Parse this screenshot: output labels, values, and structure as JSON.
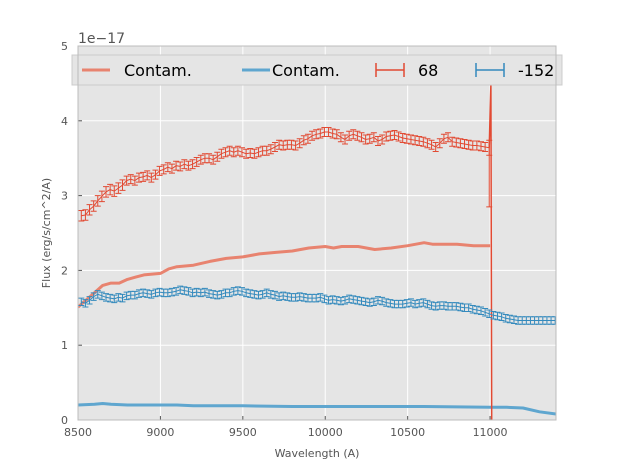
{
  "chart_data": {
    "type": "line",
    "title": "",
    "xlabel": "Wavelength (A)",
    "ylabel": "Flux (erg/s/cm^2/A)",
    "y_offset_label": "1e−17",
    "xlim": [
      8500,
      11400
    ],
    "ylim": [
      0,
      5
    ],
    "x_ticks": [
      8500,
      9000,
      9500,
      10000,
      10500,
      11000
    ],
    "x_tick_labels": [
      "8500",
      "9000",
      "9500",
      "10000",
      "10500",
      "11000"
    ],
    "y_ticks": [
      0,
      1,
      2,
      3,
      4,
      5
    ],
    "y_tick_labels": [
      "0",
      "1",
      "2",
      "3",
      "4",
      "5"
    ],
    "grid": true,
    "legend_position": "top",
    "series": [
      {
        "name": "Contam.",
        "kind": "line",
        "color": "#e8836f",
        "x": [
          8500,
          8600,
          8650,
          8700,
          8750,
          8800,
          8850,
          8900,
          8950,
          9000,
          9050,
          9100,
          9200,
          9300,
          9400,
          9500,
          9600,
          9700,
          9800,
          9900,
          10000,
          10050,
          10100,
          10200,
          10300,
          10400,
          10500,
          10600,
          10650,
          10700,
          10800,
          10900,
          11000
        ],
        "values": [
          1.51,
          1.7,
          1.8,
          1.83,
          1.83,
          1.88,
          1.91,
          1.94,
          1.95,
          1.96,
          2.02,
          2.05,
          2.07,
          2.12,
          2.16,
          2.18,
          2.22,
          2.24,
          2.26,
          2.3,
          2.32,
          2.3,
          2.32,
          2.32,
          2.28,
          2.3,
          2.33,
          2.37,
          2.35,
          2.35,
          2.35,
          2.33,
          2.33
        ]
      },
      {
        "name": "Contam.",
        "kind": "line",
        "color": "#5fa6cf",
        "x": [
          8500,
          8600,
          8650,
          8700,
          8800,
          9000,
          9100,
          9200,
          9500,
          9800,
          10000,
          10500,
          10600,
          11000,
          11100,
          11200,
          11300,
          11400
        ],
        "values": [
          0.2,
          0.21,
          0.22,
          0.21,
          0.2,
          0.2,
          0.2,
          0.19,
          0.19,
          0.18,
          0.18,
          0.18,
          0.18,
          0.17,
          0.17,
          0.16,
          0.11,
          0.08
        ]
      },
      {
        "name": "68",
        "kind": "errorbar",
        "color": "#e24a33",
        "x": [
          8520,
          8545,
          8570,
          8595,
          8620,
          8645,
          8670,
          8695,
          8720,
          8745,
          8770,
          8795,
          8820,
          8845,
          8870,
          8895,
          8920,
          8945,
          8970,
          8995,
          9020,
          9045,
          9070,
          9095,
          9120,
          9145,
          9170,
          9195,
          9220,
          9245,
          9270,
          9295,
          9320,
          9345,
          9370,
          9395,
          9420,
          9445,
          9470,
          9495,
          9520,
          9545,
          9570,
          9595,
          9620,
          9645,
          9670,
          9695,
          9720,
          9745,
          9770,
          9795,
          9820,
          9845,
          9870,
          9895,
          9920,
          9945,
          9970,
          9995,
          10020,
          10045,
          10070,
          10095,
          10120,
          10145,
          10170,
          10195,
          10220,
          10245,
          10270,
          10295,
          10320,
          10345,
          10370,
          10395,
          10420,
          10445,
          10470,
          10495,
          10520,
          10545,
          10570,
          10595,
          10620,
          10645,
          10670,
          10695,
          10720,
          10745,
          10770,
          10795,
          10820,
          10845,
          10870,
          10895,
          10920,
          10945,
          10970,
          10995
        ],
        "values": [
          2.73,
          2.74,
          2.81,
          2.86,
          2.93,
          2.99,
          3.05,
          3.08,
          3.06,
          3.1,
          3.14,
          3.2,
          3.22,
          3.2,
          3.24,
          3.25,
          3.27,
          3.24,
          3.28,
          3.33,
          3.35,
          3.38,
          3.36,
          3.4,
          3.39,
          3.42,
          3.4,
          3.42,
          3.45,
          3.48,
          3.5,
          3.5,
          3.48,
          3.52,
          3.56,
          3.58,
          3.6,
          3.58,
          3.6,
          3.58,
          3.56,
          3.57,
          3.56,
          3.58,
          3.6,
          3.6,
          3.62,
          3.65,
          3.68,
          3.67,
          3.68,
          3.68,
          3.67,
          3.7,
          3.74,
          3.76,
          3.8,
          3.82,
          3.83,
          3.85,
          3.85,
          3.83,
          3.82,
          3.78,
          3.75,
          3.8,
          3.82,
          3.8,
          3.78,
          3.75,
          3.76,
          3.78,
          3.73,
          3.75,
          3.79,
          3.8,
          3.81,
          3.79,
          3.77,
          3.76,
          3.75,
          3.74,
          3.73,
          3.72,
          3.7,
          3.68,
          3.65,
          3.7,
          3.76,
          3.78,
          3.72,
          3.71,
          3.7,
          3.69,
          3.68,
          3.67,
          3.67,
          3.66,
          3.65,
          3.64
        ],
        "errors": [
          0.07,
          0.07,
          0.07,
          0.07,
          0.07,
          0.07,
          0.07,
          0.07,
          0.07,
          0.07,
          0.07,
          0.06,
          0.06,
          0.06,
          0.06,
          0.06,
          0.06,
          0.06,
          0.06,
          0.06,
          0.06,
          0.06,
          0.06,
          0.06,
          0.06,
          0.06,
          0.06,
          0.06,
          0.06,
          0.06,
          0.06,
          0.06,
          0.06,
          0.06,
          0.06,
          0.06,
          0.06,
          0.06,
          0.06,
          0.06,
          0.06,
          0.06,
          0.06,
          0.06,
          0.06,
          0.06,
          0.06,
          0.06,
          0.06,
          0.06,
          0.06,
          0.06,
          0.06,
          0.06,
          0.06,
          0.06,
          0.06,
          0.06,
          0.06,
          0.06,
          0.06,
          0.06,
          0.06,
          0.06,
          0.06,
          0.06,
          0.06,
          0.06,
          0.06,
          0.06,
          0.06,
          0.06,
          0.06,
          0.06,
          0.06,
          0.06,
          0.06,
          0.06,
          0.06,
          0.06,
          0.06,
          0.06,
          0.06,
          0.06,
          0.06,
          0.06,
          0.06,
          0.06,
          0.06,
          0.06,
          0.06,
          0.06,
          0.06,
          0.06,
          0.06,
          0.06,
          0.06,
          0.06,
          0.06,
          0.1
        ],
        "tail": {
          "x": [
            10995,
            11005,
            11010
          ],
          "values": [
            3.64,
            4.5,
            0.0
          ]
        }
      },
      {
        "name": "-152",
        "kind": "errorbar",
        "color": "#348abd",
        "x": [
          8520,
          8545,
          8570,
          8595,
          8620,
          8645,
          8670,
          8695,
          8720,
          8745,
          8770,
          8795,
          8820,
          8845,
          8870,
          8895,
          8920,
          8945,
          8970,
          8995,
          9020,
          9045,
          9070,
          9095,
          9120,
          9145,
          9170,
          9195,
          9220,
          9245,
          9270,
          9295,
          9320,
          9345,
          9370,
          9395,
          9420,
          9445,
          9470,
          9495,
          9520,
          9545,
          9570,
          9595,
          9620,
          9645,
          9670,
          9695,
          9720,
          9745,
          9770,
          9795,
          9820,
          9845,
          9870,
          9895,
          9920,
          9945,
          9970,
          9995,
          10020,
          10045,
          10070,
          10095,
          10120,
          10145,
          10170,
          10195,
          10220,
          10245,
          10270,
          10295,
          10320,
          10345,
          10370,
          10395,
          10420,
          10445,
          10470,
          10495,
          10520,
          10545,
          10570,
          10595,
          10620,
          10645,
          10670,
          10695,
          10720,
          10745,
          10770,
          10795,
          10820,
          10845,
          10870,
          10895,
          10920,
          10945,
          10970,
          10995,
          11020,
          11045,
          11070,
          11095,
          11120,
          11145,
          11170,
          11195,
          11220,
          11245,
          11270,
          11295,
          11320,
          11345,
          11370,
          11395
        ],
        "values": [
          1.58,
          1.56,
          1.6,
          1.65,
          1.68,
          1.66,
          1.64,
          1.63,
          1.62,
          1.64,
          1.63,
          1.66,
          1.67,
          1.67,
          1.69,
          1.7,
          1.69,
          1.68,
          1.7,
          1.71,
          1.7,
          1.7,
          1.71,
          1.72,
          1.74,
          1.73,
          1.72,
          1.7,
          1.71,
          1.7,
          1.71,
          1.69,
          1.68,
          1.67,
          1.68,
          1.7,
          1.7,
          1.72,
          1.73,
          1.72,
          1.7,
          1.69,
          1.68,
          1.67,
          1.68,
          1.7,
          1.68,
          1.67,
          1.65,
          1.66,
          1.65,
          1.64,
          1.64,
          1.65,
          1.64,
          1.63,
          1.63,
          1.63,
          1.64,
          1.62,
          1.6,
          1.61,
          1.6,
          1.59,
          1.6,
          1.62,
          1.61,
          1.6,
          1.59,
          1.58,
          1.57,
          1.58,
          1.6,
          1.59,
          1.57,
          1.56,
          1.55,
          1.55,
          1.55,
          1.56,
          1.57,
          1.55,
          1.56,
          1.57,
          1.55,
          1.53,
          1.52,
          1.53,
          1.53,
          1.52,
          1.52,
          1.52,
          1.51,
          1.5,
          1.5,
          1.48,
          1.47,
          1.46,
          1.44,
          1.42,
          1.4,
          1.39,
          1.38,
          1.36,
          1.35,
          1.34,
          1.33,
          1.33,
          1.33,
          1.33,
          1.33,
          1.33,
          1.33,
          1.33,
          1.33,
          1.33
        ],
        "errors": [
          0.05,
          0.05,
          0.05,
          0.05,
          0.05,
          0.05,
          0.05,
          0.05,
          0.05,
          0.05,
          0.05,
          0.05,
          0.05,
          0.05,
          0.05,
          0.05,
          0.05,
          0.05,
          0.05,
          0.05,
          0.05,
          0.05,
          0.05,
          0.05,
          0.05,
          0.05,
          0.05,
          0.05,
          0.05,
          0.05,
          0.05,
          0.05,
          0.05,
          0.05,
          0.05,
          0.05,
          0.05,
          0.05,
          0.05,
          0.05,
          0.05,
          0.05,
          0.05,
          0.05,
          0.05,
          0.05,
          0.05,
          0.05,
          0.05,
          0.05,
          0.05,
          0.05,
          0.05,
          0.05,
          0.05,
          0.05,
          0.05,
          0.05,
          0.05,
          0.05,
          0.05,
          0.05,
          0.05,
          0.05,
          0.05,
          0.05,
          0.05,
          0.05,
          0.05,
          0.05,
          0.05,
          0.05,
          0.05,
          0.05,
          0.05,
          0.05,
          0.05,
          0.05,
          0.05,
          0.05,
          0.05,
          0.05,
          0.05,
          0.05,
          0.05,
          0.05,
          0.05,
          0.05,
          0.05,
          0.05,
          0.05,
          0.05,
          0.05,
          0.05,
          0.05,
          0.05,
          0.05,
          0.05,
          0.05,
          0.05,
          0.05,
          0.05,
          0.05,
          0.05,
          0.05,
          0.05,
          0.05,
          0.05,
          0.05,
          0.05,
          0.05,
          0.05,
          0.05,
          0.05,
          0.05,
          0.05
        ]
      }
    ]
  }
}
